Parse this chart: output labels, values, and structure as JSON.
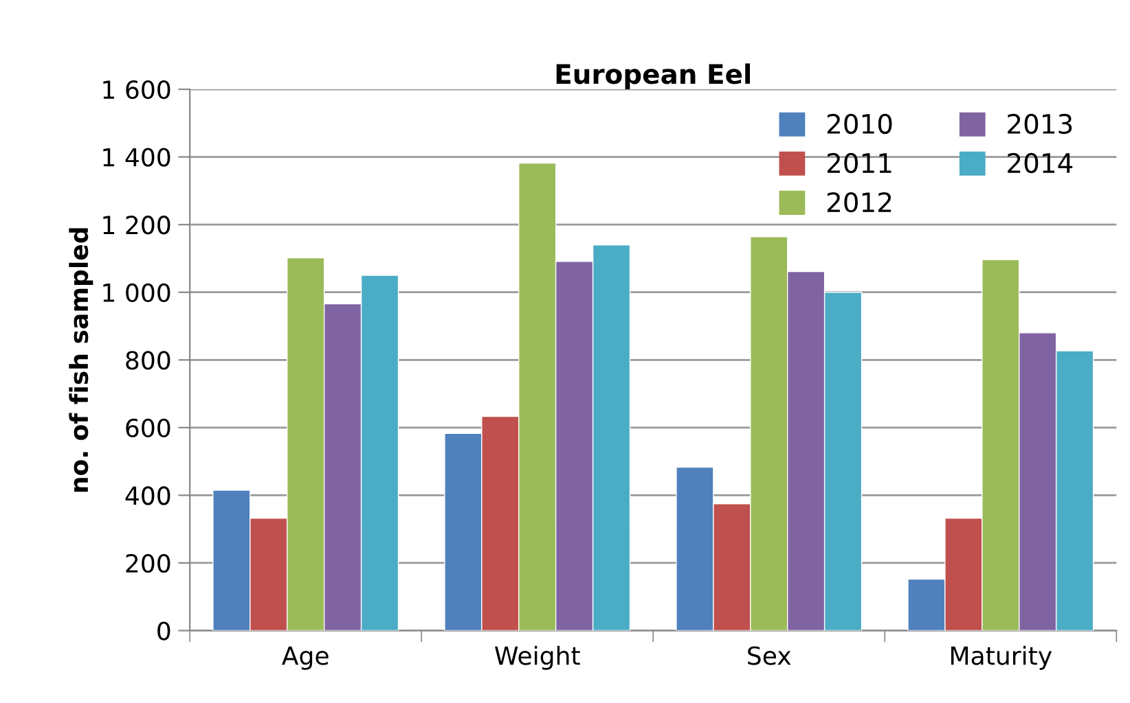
{
  "chart_data": {
    "type": "bar",
    "title": "European Eel",
    "ylabel": "no. of fish sampled",
    "categories": [
      "Age",
      "Weight",
      "Sex",
      "Maturity"
    ],
    "series": [
      {
        "name": "2010",
        "color": "#4f81bd",
        "values": [
          415,
          583,
          483,
          152
        ]
      },
      {
        "name": "2011",
        "color": "#c0504d",
        "values": [
          332,
          633,
          375,
          332
        ]
      },
      {
        "name": "2012",
        "color": "#9bbb59",
        "values": [
          1102,
          1382,
          1164,
          1096
        ]
      },
      {
        "name": "2013",
        "color": "#8064a2",
        "values": [
          966,
          1091,
          1061,
          880
        ]
      },
      {
        "name": "2014",
        "color": "#4bacc6",
        "values": [
          1050,
          1140,
          1000,
          827
        ]
      }
    ],
    "ylim": [
      0,
      1600
    ],
    "yticks": [
      0,
      200,
      400,
      600,
      800,
      {
        "value": 1000,
        "label": "1 000"
      },
      {
        "value": 1200,
        "label": "1 200"
      },
      {
        "value": 1400,
        "label": "1 400"
      },
      {
        "value": 1600,
        "label": "1 600"
      }
    ],
    "grid": "y",
    "legend": "top right"
  }
}
